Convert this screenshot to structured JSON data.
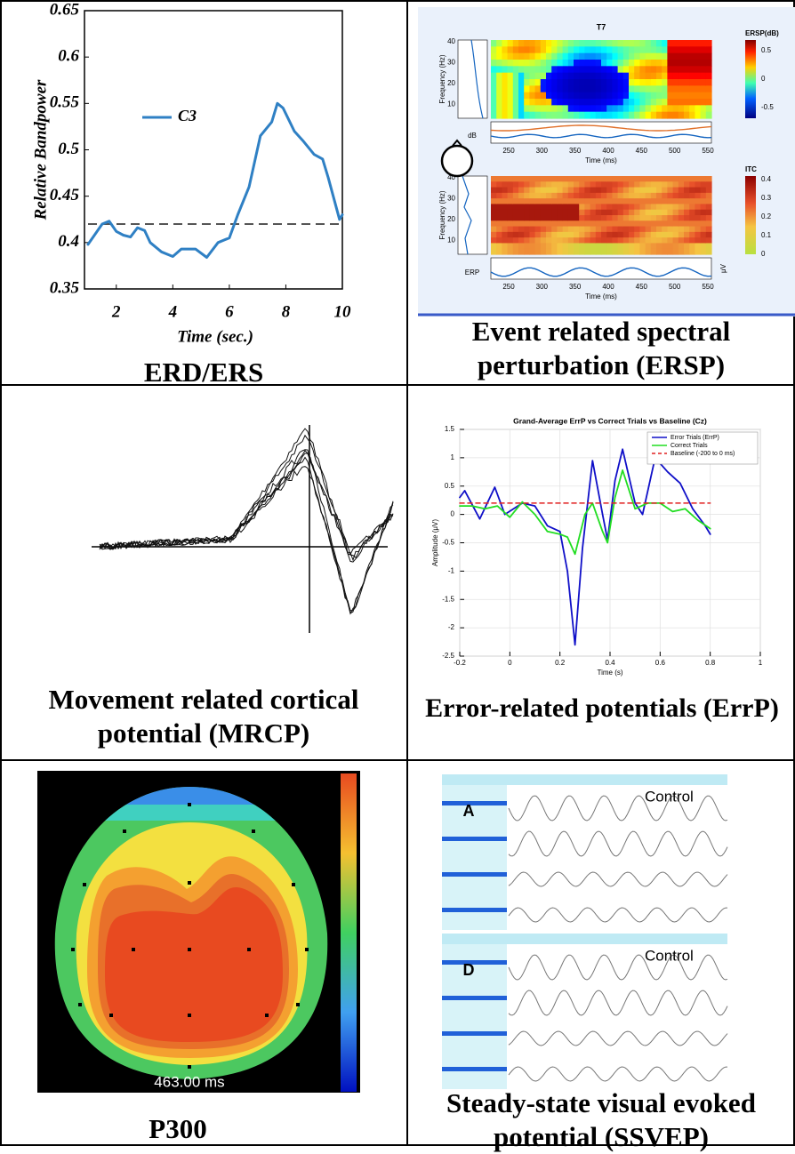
{
  "captions": [
    "ERD/ERS",
    "Event related spectral perturbation (ERSP)",
    "Movement related cortical potential (MRCP)",
    "Error-related potentials (ErrP)",
    "P300",
    "Steady-state visual evoked potential (SSVEP)"
  ],
  "chart_data": [
    {
      "type": "line",
      "x_label": "Time (sec.)",
      "y_label": "Relative Bandpower",
      "x": [
        1,
        1.5,
        1.75,
        2,
        2.25,
        2.5,
        2.75,
        3,
        3.2,
        3.6,
        4,
        4.3,
        4.8,
        5.2,
        5.6,
        6,
        6.3,
        6.7,
        7.1,
        7.5,
        7.7,
        7.9,
        8.3,
        8.6,
        9,
        9.3,
        9.5,
        9.9,
        10
      ],
      "series": [
        {
          "name": "C3",
          "color": "#2f80c4",
          "values": [
            0.398,
            0.42,
            0.423,
            0.412,
            0.408,
            0.406,
            0.416,
            0.413,
            0.4,
            0.39,
            0.385,
            0.393,
            0.393,
            0.384,
            0.4,
            0.405,
            0.43,
            0.46,
            0.515,
            0.53,
            0.55,
            0.545,
            0.52,
            0.51,
            0.495,
            0.49,
            0.47,
            0.425,
            0.43
          ]
        }
      ],
      "ref_line": 0.42,
      "xlim": [
        1,
        10
      ],
      "ylim": [
        0.35,
        0.65
      ],
      "xticks": [
        2,
        4,
        6,
        8,
        10
      ],
      "yticks": [
        0.35,
        0.4,
        0.45,
        0.5,
        0.55,
        0.6,
        0.65
      ],
      "grid": false,
      "legend": "center left"
    },
    {
      "type": "line",
      "title": "Grand-Average ErrP vs Correct Trials vs Baseline (Cz)",
      "x_label": "Time (s)",
      "y_label": "Amplitude (μV)",
      "series": [
        {
          "name": "Error Trials (ErrP)",
          "color": "#1010c8",
          "x": [
            -0.2,
            -0.18,
            -0.12,
            -0.06,
            -0.02,
            0.05,
            0.1,
            0.15,
            0.2,
            0.23,
            0.26,
            0.29,
            0.33,
            0.37,
            0.39,
            0.42,
            0.45,
            0.5,
            0.53,
            0.58,
            0.63,
            0.68,
            0.73,
            0.78,
            0.8
          ],
          "values": [
            0.3,
            0.42,
            -0.08,
            0.48,
            0.0,
            0.2,
            0.15,
            -0.2,
            -0.3,
            -1.0,
            -2.3,
            -0.6,
            0.95,
            0.0,
            -0.45,
            0.6,
            1.15,
            0.2,
            0.0,
            1.0,
            0.75,
            0.55,
            0.1,
            -0.2,
            -0.35
          ]
        },
        {
          "name": "Correct Trials",
          "color": "#22dd22",
          "x": [
            -0.2,
            -0.15,
            -0.1,
            -0.05,
            0.0,
            0.05,
            0.1,
            0.15,
            0.2,
            0.23,
            0.26,
            0.3,
            0.33,
            0.37,
            0.39,
            0.42,
            0.45,
            0.5,
            0.55,
            0.6,
            0.65,
            0.7,
            0.75,
            0.8
          ],
          "values": [
            0.15,
            0.15,
            0.1,
            0.15,
            -0.05,
            0.22,
            0.0,
            -0.3,
            -0.35,
            -0.4,
            -0.7,
            0.0,
            0.2,
            -0.3,
            -0.5,
            0.3,
            0.78,
            0.1,
            0.2,
            0.2,
            0.05,
            0.1,
            -0.1,
            -0.25
          ]
        },
        {
          "name": "Baseline (-200 to 0 ms)",
          "color": "#e02020",
          "dashed": true,
          "x": [
            -0.2,
            0.8
          ],
          "values": [
            0.2,
            0.2
          ]
        }
      ],
      "xlim": [
        -0.2,
        1
      ],
      "ylim": [
        -2.5,
        1.5
      ],
      "xticks": [
        -0.2,
        0,
        0.2,
        0.4,
        0.6,
        0.8,
        1
      ],
      "yticks": [
        -2.5,
        -2,
        -1.5,
        -1,
        -0.5,
        0,
        0.5,
        1,
        1.5
      ],
      "grid": true,
      "legend": "upper right"
    }
  ],
  "ersp": {
    "title": "T7",
    "ersp_label": "ERSP(dB)",
    "itc_label": "ITC",
    "y_label": "Frequency (Hz)",
    "x_label": "Time (ms)",
    "time_ticks": [
      250,
      300,
      350,
      400,
      450,
      500,
      550
    ],
    "freq_ticks": [
      10,
      20,
      30,
      40
    ],
    "ersp_ticks": [
      -0.5,
      0,
      0.5
    ],
    "itc_ticks": [
      0,
      0.1,
      0.2,
      0.3,
      0.4
    ],
    "db_label": "dB",
    "erp_label": "ERP",
    "uv_label": "μV"
  },
  "p300": {
    "time_label": "463.00 ms"
  },
  "ssvep": {
    "blocks": [
      {
        "letter": "A",
        "condition": "Control"
      },
      {
        "letter": "D",
        "condition": "Control"
      }
    ]
  }
}
